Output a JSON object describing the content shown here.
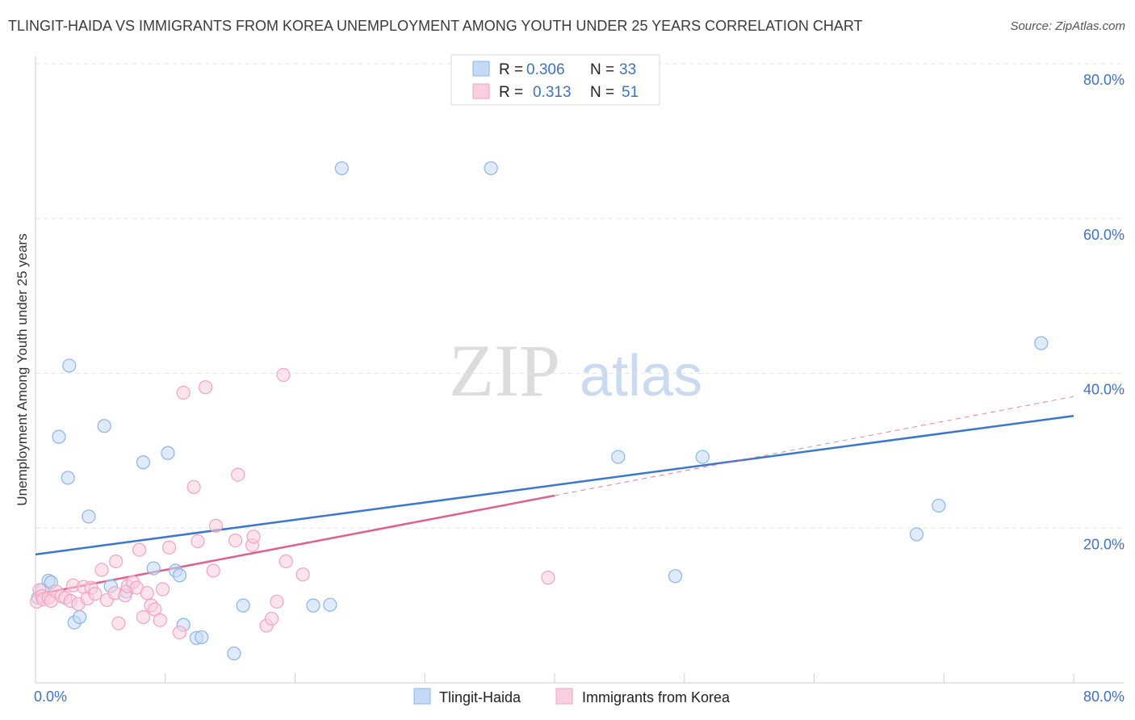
{
  "header": {
    "title": "TLINGIT-HAIDA VS IMMIGRANTS FROM KOREA UNEMPLOYMENT AMONG YOUTH UNDER 25 YEARS CORRELATION CHART",
    "source": "Source: ZipAtlas.com"
  },
  "watermark": {
    "zip": "ZIP",
    "atlas": "atlas"
  },
  "chart_data": {
    "type": "scatter",
    "ylabel": "Unemployment Among Youth under 25 years",
    "xlim": [
      0,
      80
    ],
    "ylim": [
      0,
      80
    ],
    "x_tick_labels": [
      "0.0%",
      "80.0%"
    ],
    "y_ticks": [
      20,
      40,
      60,
      80
    ],
    "y_tick_labels": [
      "20.0%",
      "40.0%",
      "60.0%",
      "80.0%"
    ],
    "legend": {
      "rows": [
        {
          "r_label": "R =",
          "r_value": "0.306",
          "n_label": "N =",
          "n_value": "33"
        },
        {
          "r_label": "R =",
          "r_value": "0.313",
          "n_label": "N =",
          "n_value": "51"
        }
      ]
    },
    "series": [
      {
        "name": "Tlingit-Haida",
        "color": "#8ab4f0",
        "fill": "#c5daf7",
        "line_color": "#3a78d0",
        "trend": {
          "x1": 0,
          "y1": 16.6,
          "x2": 80,
          "y2": 34.5
        },
        "points": [
          [
            0.2,
            11.0
          ],
          [
            0.5,
            12.0
          ],
          [
            1.0,
            13.2
          ],
          [
            1.2,
            13.0
          ],
          [
            1.8,
            31.8
          ],
          [
            2.5,
            26.5
          ],
          [
            2.6,
            41.0
          ],
          [
            3.0,
            7.8
          ],
          [
            3.4,
            8.5
          ],
          [
            4.1,
            21.5
          ],
          [
            5.3,
            33.2
          ],
          [
            5.8,
            12.5
          ],
          [
            7.0,
            11.8
          ],
          [
            8.3,
            28.5
          ],
          [
            9.1,
            14.8
          ],
          [
            10.2,
            29.7
          ],
          [
            10.8,
            14.5
          ],
          [
            11.1,
            13.9
          ],
          [
            11.4,
            7.5
          ],
          [
            12.4,
            5.8
          ],
          [
            12.8,
            5.9
          ],
          [
            15.3,
            3.8
          ],
          [
            16.0,
            10.0
          ],
          [
            23.6,
            66.5
          ],
          [
            21.4,
            10.0
          ],
          [
            22.7,
            10.1
          ],
          [
            35.1,
            66.5
          ],
          [
            44.9,
            29.2
          ],
          [
            49.3,
            13.8
          ],
          [
            51.4,
            29.2
          ],
          [
            67.9,
            19.2
          ],
          [
            69.6,
            22.9
          ],
          [
            77.5,
            43.9
          ]
        ]
      },
      {
        "name": "Immigrants from Korea",
        "color": "#f3a3bd",
        "fill": "#f9cede",
        "line_color": "#e0608c",
        "trend": {
          "x1": 0,
          "y1": 11.4,
          "x2": 40,
          "y2": 24.2
        },
        "trend_dashed": {
          "x1": 40,
          "y1": 24.2,
          "x2": 80,
          "y2": 37.0
        },
        "points": [
          [
            0.1,
            10.5
          ],
          [
            0.3,
            12.0
          ],
          [
            0.5,
            11.2
          ],
          [
            0.6,
            10.8
          ],
          [
            1.0,
            11.0
          ],
          [
            1.2,
            10.6
          ],
          [
            1.6,
            11.8
          ],
          [
            2.0,
            11.2
          ],
          [
            2.3,
            11.0
          ],
          [
            2.7,
            10.6
          ],
          [
            2.9,
            12.6
          ],
          [
            3.3,
            10.2
          ],
          [
            3.7,
            12.4
          ],
          [
            4.0,
            10.9
          ],
          [
            4.3,
            12.3
          ],
          [
            4.6,
            11.5
          ],
          [
            5.1,
            14.6
          ],
          [
            5.5,
            10.7
          ],
          [
            6.1,
            11.6
          ],
          [
            6.2,
            15.7
          ],
          [
            6.4,
            7.7
          ],
          [
            6.9,
            11.3
          ],
          [
            7.1,
            12.5
          ],
          [
            7.5,
            13.0
          ],
          [
            7.8,
            12.3
          ],
          [
            8.0,
            17.2
          ],
          [
            8.3,
            8.5
          ],
          [
            8.6,
            11.6
          ],
          [
            8.9,
            10.0
          ],
          [
            9.2,
            9.5
          ],
          [
            9.6,
            8.1
          ],
          [
            9.8,
            12.1
          ],
          [
            10.3,
            17.5
          ],
          [
            11.1,
            6.5
          ],
          [
            11.4,
            37.5
          ],
          [
            12.2,
            25.3
          ],
          [
            12.5,
            18.3
          ],
          [
            13.1,
            38.2
          ],
          [
            13.7,
            14.5
          ],
          [
            13.9,
            20.3
          ],
          [
            15.4,
            18.4
          ],
          [
            15.6,
            26.9
          ],
          [
            16.7,
            17.8
          ],
          [
            16.8,
            18.9
          ],
          [
            17.8,
            7.4
          ],
          [
            18.2,
            8.3
          ],
          [
            18.6,
            10.5
          ],
          [
            19.1,
            39.8
          ],
          [
            19.3,
            15.7
          ],
          [
            20.6,
            14.0
          ],
          [
            39.5,
            13.6
          ]
        ]
      }
    ]
  },
  "bottom_legend": {
    "items": [
      {
        "label": "Tlingit-Haida"
      },
      {
        "label": "Immigrants from Korea"
      }
    ]
  }
}
